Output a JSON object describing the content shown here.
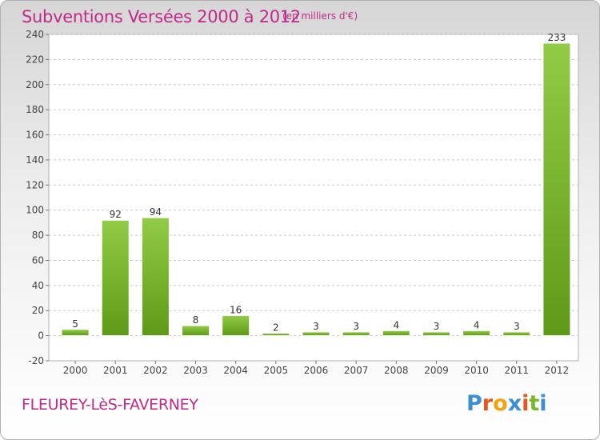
{
  "header": {
    "title": "Subventions Versées 2000 à 2012",
    "unit_note": "(en milliers d'€)"
  },
  "footer": {
    "commune": "FLEUREY-LèS-FAVERNEY",
    "logo_text": "Proxiti",
    "logo_colors": [
      "#3a8fd6",
      "#e8541e",
      "#f2a20a",
      "#3a8fd6",
      "#e8541e",
      "#7ab829",
      "#3a8fd6"
    ]
  },
  "chart_data": {
    "type": "bar",
    "categories": [
      "2000",
      "2001",
      "2002",
      "2003",
      "2004",
      "2005",
      "2006",
      "2007",
      "2008",
      "2009",
      "2010",
      "2011",
      "2012"
    ],
    "values": [
      5,
      92,
      94,
      8,
      16,
      2,
      3,
      3,
      4,
      3,
      4,
      3,
      233
    ],
    "data_labels": [
      "5",
      "92",
      "94",
      "8",
      "16",
      "2",
      "3",
      "3",
      "4",
      "3",
      "4",
      "3",
      "233"
    ],
    "ylim": [
      -20,
      240
    ],
    "yticks": [
      -20,
      0,
      20,
      40,
      60,
      80,
      100,
      120,
      140,
      160,
      180,
      200,
      220,
      240
    ],
    "ytick_labels": [
      "-20",
      "0",
      "20",
      "40",
      "60",
      "80",
      "100",
      "120",
      "140",
      "160",
      "180",
      "200",
      "220",
      "240"
    ],
    "grid": "horizontal dashed",
    "bar_color_light": "#92cc46",
    "bar_color_dark": "#5e9a17",
    "title": "",
    "xlabel": "",
    "ylabel": ""
  }
}
